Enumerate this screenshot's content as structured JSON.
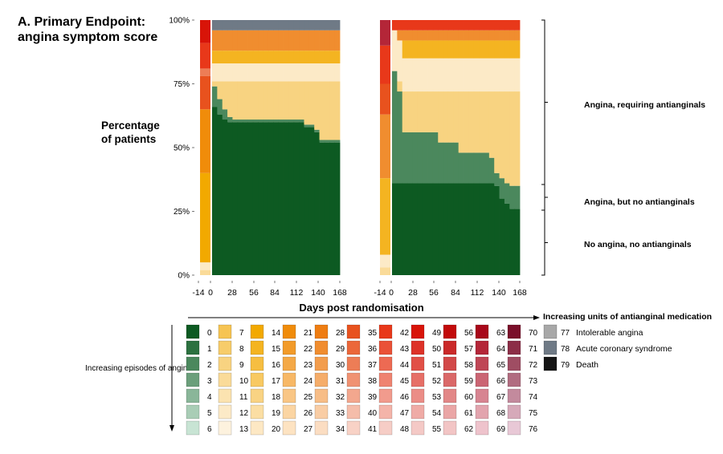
{
  "title_line1": "A.   Primary Endpoint:",
  "title_line2": "angina symptom score",
  "chart_data": {
    "type": "area",
    "ylabel_line1": "Percentage",
    "ylabel_line2": "of patients",
    "xlabel": "Days post randomisation",
    "ylim": [
      0,
      100
    ],
    "yticks": [
      "0%",
      "25%",
      "50%",
      "75%",
      "100%"
    ],
    "xticks": [
      "-14",
      "0",
      "28",
      "56",
      "84",
      "112",
      "140",
      "168"
    ],
    "x_days": [
      0,
      7,
      14,
      21,
      28,
      35,
      42,
      49,
      56,
      63,
      70,
      77,
      84,
      91,
      98,
      105,
      112,
      119,
      126,
      133,
      140,
      147,
      154,
      161,
      168
    ],
    "panels": [
      {
        "pre": {
          "14": 35,
          "10": 2,
          "21": 25,
          "12": 3,
          "35": 13,
          "37": 3,
          "42": 10,
          "49": 9
        },
        "series": [
          {
            "code": "0",
            "values": [
              66,
              63,
              61,
              60,
              60,
              60,
              60,
              60,
              60,
              60,
              60,
              60,
              60,
              60,
              60,
              60,
              60,
              60,
              58,
              58,
              56,
              52,
              52,
              52,
              52
            ]
          },
          {
            "code": "2",
            "values": [
              8,
              6,
              4,
              2,
              1,
              1,
              1,
              1,
              1,
              1,
              1,
              1,
              1,
              1,
              1,
              1,
              1,
              1,
              1,
              1,
              1,
              1,
              1,
              1,
              1
            ]
          },
          {
            "code": "9",
            "values": [
              2,
              7,
              11,
              14,
              15,
              15,
              15,
              15,
              15,
              15,
              15,
              15,
              15,
              15,
              15,
              15,
              15,
              15,
              17,
              17,
              19,
              23,
              23,
              23,
              23
            ]
          },
          {
            "code": "12",
            "values": [
              7,
              7,
              7,
              7,
              7,
              7,
              7,
              7,
              7,
              7,
              7,
              7,
              7,
              7,
              7,
              7,
              7,
              7,
              7,
              7,
              7,
              7,
              7,
              7,
              7
            ]
          },
          {
            "code": "15",
            "values": [
              5,
              5,
              5,
              5,
              5,
              5,
              5,
              5,
              5,
              5,
              5,
              5,
              5,
              5,
              5,
              5,
              5,
              5,
              5,
              5,
              5,
              5,
              5,
              5,
              5
            ]
          },
          {
            "code": "29",
            "values": [
              8,
              8,
              8,
              8,
              8,
              8,
              8,
              8,
              8,
              8,
              8,
              8,
              8,
              8,
              8,
              8,
              8,
              8,
              8,
              8,
              8,
              8,
              8,
              8,
              8
            ]
          },
          {
            "code": "78",
            "values": [
              4,
              4,
              4,
              4,
              4,
              4,
              4,
              4,
              4,
              4,
              4,
              4,
              4,
              4,
              4,
              4,
              4,
              4,
              4,
              4,
              4,
              4,
              4,
              4,
              4
            ]
          }
        ]
      },
      {
        "pre": {
          "15": 30,
          "12": 5,
          "29": 25,
          "10": 3,
          "35": 12,
          "42": 15,
          "64": 10
        },
        "series": [
          {
            "code": "0",
            "values": [
              36,
              36,
              36,
              36,
              36,
              36,
              36,
              36,
              36,
              36,
              36,
              36,
              36,
              36,
              36,
              36,
              36,
              36,
              36,
              36,
              35,
              30,
              28,
              26,
              26
            ]
          },
          {
            "code": "2",
            "values": [
              44,
              36,
              20,
              20,
              20,
              20,
              20,
              20,
              20,
              16,
              16,
              16,
              16,
              12,
              12,
              12,
              12,
              12,
              12,
              10,
              5,
              8,
              8,
              9,
              9
            ]
          },
          {
            "code": "9",
            "values": [
              0,
              4,
              16,
              16,
              16,
              16,
              16,
              16,
              16,
              20,
              20,
              20,
              20,
              24,
              24,
              24,
              24,
              24,
              24,
              26,
              32,
              34,
              36,
              37,
              37
            ]
          },
          {
            "code": "12",
            "values": [
              16,
              16,
              13,
              13,
              13,
              13,
              13,
              13,
              13,
              13,
              13,
              13,
              13,
              13,
              13,
              13,
              13,
              13,
              13,
              13,
              13,
              13,
              13,
              13,
              13
            ]
          },
          {
            "code": "15",
            "values": [
              0,
              0,
              7,
              7,
              7,
              7,
              7,
              7,
              7,
              7,
              7,
              7,
              7,
              7,
              7,
              7,
              7,
              7,
              7,
              7,
              7,
              7,
              7,
              7,
              7
            ]
          },
          {
            "code": "29",
            "values": [
              0,
              4,
              4,
              4,
              4,
              4,
              4,
              4,
              4,
              4,
              4,
              4,
              4,
              4,
              4,
              4,
              4,
              4,
              4,
              4,
              4,
              4,
              4,
              4,
              4
            ]
          },
          {
            "code": "42",
            "values": [
              4,
              4,
              4,
              4,
              4,
              4,
              4,
              4,
              4,
              4,
              4,
              4,
              4,
              4,
              4,
              4,
              4,
              4,
              4,
              4,
              4,
              4,
              4,
              4,
              4
            ]
          }
        ]
      }
    ],
    "brace_labels": [
      "Angina, requiring antianginals",
      "Angina, but no antianginals",
      "No angina, no antianginals"
    ]
  },
  "legend": {
    "x_direction": "Increasing units of antianginal medication",
    "y_direction": "Increasing episodes of angina",
    "columns": [
      {
        "codes": [
          "0",
          "1",
          "2",
          "3",
          "4",
          "5",
          "6"
        ],
        "top": "#0d5a22",
        "bottom": "#c8e4d4"
      },
      {
        "codes": [
          "7",
          "8",
          "9",
          "10",
          "11",
          "12",
          "13"
        ],
        "top": "#f6c453",
        "bottom": "#fdf2de"
      },
      {
        "codes": [
          "14",
          "15",
          "16",
          "17",
          "18",
          "19",
          "20"
        ],
        "top": "#f2a900",
        "bottom": "#fde8c4"
      },
      {
        "codes": [
          "21",
          "22",
          "23",
          "24",
          "25",
          "26",
          "27"
        ],
        "top": "#f08c0a",
        "bottom": "#fde3c2"
      },
      {
        "codes": [
          "28",
          "29",
          "30",
          "31",
          "32",
          "33",
          "34"
        ],
        "top": "#ee7d12",
        "bottom": "#fbddc2"
      },
      {
        "codes": [
          "35",
          "36",
          "37",
          "38",
          "39",
          "40",
          "41"
        ],
        "top": "#e8521e",
        "bottom": "#f8d2c6"
      },
      {
        "codes": [
          "42",
          "43",
          "44",
          "45",
          "46",
          "47",
          "48"
        ],
        "top": "#e8381a",
        "bottom": "#f6cdc6"
      },
      {
        "codes": [
          "49",
          "50",
          "51",
          "52",
          "53",
          "54",
          "55"
        ],
        "top": "#d81408",
        "bottom": "#f4c9c6"
      },
      {
        "codes": [
          "56",
          "57",
          "58",
          "59",
          "60",
          "61",
          "62"
        ],
        "top": "#c20a0a",
        "bottom": "#f2c5c5"
      },
      {
        "codes": [
          "63",
          "64",
          "65",
          "66",
          "67",
          "68",
          "69"
        ],
        "top": "#a8071a",
        "bottom": "#eec3cc"
      },
      {
        "codes": [
          "70",
          "71",
          "72",
          "73",
          "74",
          "75",
          "76"
        ],
        "top": "#7a0f2a",
        "bottom": "#e8c8d6"
      }
    ],
    "special": [
      {
        "code": "77",
        "label": "Intolerable angina",
        "color": "#a8a8a8"
      },
      {
        "code": "78",
        "label": "Acute coronary syndrome",
        "color": "#6f7a86"
      },
      {
        "code": "79",
        "label": "Death",
        "color": "#151515"
      }
    ]
  }
}
